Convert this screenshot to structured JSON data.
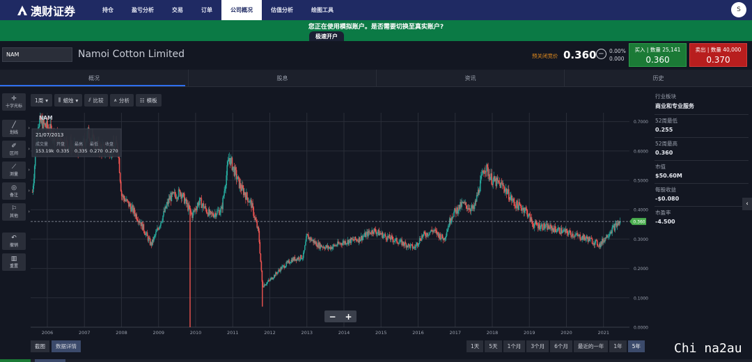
{
  "nav": {
    "brand": "澳财证券",
    "items": [
      "持仓",
      "盈亏分析",
      "交易",
      "订单",
      "公司概况",
      "估值分析",
      "绘图工具"
    ],
    "active_index": 4,
    "user_initial": "S"
  },
  "banner": {
    "message": "您正在使用模拟账户。是否需要切换至真实账户?",
    "open_button": "极速开户"
  },
  "quote": {
    "ticker": "NAM",
    "company": "Namoi Cotton Limited",
    "price_label": "预关闭竞价",
    "price": "0.360",
    "change_pct": "0.00%",
    "change_abs": "0.000",
    "buy": {
      "label": "买入 | 数量 25,141",
      "price": "0.360"
    },
    "sell": {
      "label": "卖出 | 数量 40,000",
      "price": "0.370"
    }
  },
  "tabs": [
    "概况",
    "股息",
    "资讯",
    "历史"
  ],
  "tools": [
    {
      "name": "十字光标",
      "icon": "crosshair-icon",
      "glyph": "✛",
      "arrow": false
    },
    {
      "name": "划线",
      "icon": "line-icon",
      "glyph": "╱",
      "arrow": true
    },
    {
      "name": "区间",
      "icon": "range-icon",
      "glyph": "⌗",
      "arrow": true
    },
    {
      "name": "测量",
      "icon": "ruler-icon",
      "glyph": "📏",
      "arrow": true
    },
    {
      "name": "备注",
      "icon": "note-icon",
      "glyph": "✎",
      "arrow": true
    },
    {
      "name": "其他",
      "icon": "flag-icon",
      "glyph": "⚑",
      "arrow": true
    },
    {
      "name": "撤销",
      "icon": "undo-icon",
      "glyph": "↶",
      "arrow": false
    },
    {
      "name": "重置",
      "icon": "trash-icon",
      "glyph": "🗑",
      "arrow": false
    }
  ],
  "toolbar": {
    "interval": "1周",
    "chart_type": "蜡烛",
    "compare": "比较",
    "analysis": "分析",
    "template": "模板"
  },
  "info_panel": [
    {
      "label": "行业板块",
      "value": "商业和专业服务"
    },
    {
      "label": "52周最低",
      "value": "0.255"
    },
    {
      "label": "52周最高",
      "value": "0.360"
    },
    {
      "label": "市值",
      "value": "$50.60M"
    },
    {
      "label": "每股收益",
      "value": "-$0.080"
    },
    {
      "label": "市盈率",
      "value": "-4.500"
    }
  ],
  "tooltip": {
    "symbol": "NAM",
    "date": "21/07/2013",
    "headers": [
      "成交量",
      "开盘",
      "最高",
      "最低",
      "收盘"
    ],
    "values": [
      "153.19k",
      "0.335",
      "0.335",
      "0.270",
      "0.270"
    ]
  },
  "bottom_left": [
    "截图",
    "数据详情"
  ],
  "ranges": [
    "1天",
    "5天",
    "1个月",
    "3个月",
    "6个月",
    "最近的一年",
    "1年",
    "5年"
  ],
  "range_active_index": 7,
  "watermark": "Chi na2au",
  "colors": {
    "up": "#26a69a",
    "down": "#ef5350",
    "last_price": "#4caf50"
  },
  "chart_data": {
    "type": "candlestick",
    "symbol": "NAM",
    "interval": "1周",
    "x_ticks": [
      "2006",
      "2007",
      "2008",
      "2009",
      "2010",
      "2011",
      "2012",
      "2013",
      "2014",
      "2015",
      "2016",
      "2017",
      "2018",
      "2019",
      "2020",
      "2021"
    ],
    "y_ticks": [
      "0.0000",
      "0.1000",
      "0.2000",
      "0.3000",
      "0.4000",
      "0.5000",
      "0.6000",
      "0.7000"
    ],
    "ylim": [
      0.0,
      0.73
    ],
    "xlim": [
      2005.55,
      2021.7
    ],
    "last_price": 0.36,
    "last_price_label": "0.360",
    "price_path": [
      [
        2005.6,
        0.46
      ],
      [
        2005.75,
        0.7
      ],
      [
        2006.0,
        0.68
      ],
      [
        2006.3,
        0.64
      ],
      [
        2006.6,
        0.62
      ],
      [
        2006.9,
        0.6
      ],
      [
        2007.1,
        0.66
      ],
      [
        2007.3,
        0.62
      ],
      [
        2007.6,
        0.6
      ],
      [
        2007.9,
        0.62
      ],
      [
        2008.0,
        0.45
      ],
      [
        2008.3,
        0.4
      ],
      [
        2008.5,
        0.36
      ],
      [
        2008.8,
        0.28
      ],
      [
        2009.0,
        0.34
      ],
      [
        2009.3,
        0.44
      ],
      [
        2009.6,
        0.46
      ],
      [
        2009.9,
        0.38
      ],
      [
        2010.1,
        0.43
      ],
      [
        2010.4,
        0.38
      ],
      [
        2010.7,
        0.4
      ],
      [
        2010.9,
        0.58
      ],
      [
        2011.2,
        0.48
      ],
      [
        2011.5,
        0.42
      ],
      [
        2011.7,
        0.32
      ],
      [
        2011.8,
        0.14
      ],
      [
        2012.0,
        0.16
      ],
      [
        2012.3,
        0.2
      ],
      [
        2012.6,
        0.23
      ],
      [
        2012.9,
        0.24
      ],
      [
        2013.0,
        0.31
      ],
      [
        2013.3,
        0.28
      ],
      [
        2013.6,
        0.27
      ],
      [
        2014.0,
        0.29
      ],
      [
        2014.4,
        0.3
      ],
      [
        2014.8,
        0.33
      ],
      [
        2015.1,
        0.31
      ],
      [
        2015.5,
        0.29
      ],
      [
        2015.9,
        0.27
      ],
      [
        2016.1,
        0.31
      ],
      [
        2016.4,
        0.33
      ],
      [
        2016.7,
        0.3
      ],
      [
        2016.9,
        0.38
      ],
      [
        2017.2,
        0.42
      ],
      [
        2017.5,
        0.4
      ],
      [
        2017.8,
        0.55
      ],
      [
        2018.0,
        0.5
      ],
      [
        2018.3,
        0.48
      ],
      [
        2018.6,
        0.42
      ],
      [
        2018.9,
        0.4
      ],
      [
        2019.1,
        0.35
      ],
      [
        2019.5,
        0.34
      ],
      [
        2019.8,
        0.33
      ],
      [
        2020.1,
        0.32
      ],
      [
        2020.3,
        0.31
      ],
      [
        2020.6,
        0.3
      ],
      [
        2020.9,
        0.28
      ],
      [
        2021.2,
        0.33
      ],
      [
        2021.45,
        0.36
      ]
    ],
    "spikes": [
      {
        "x": 2009.85,
        "low": 0.0
      },
      {
        "x": 2011.8,
        "low": 0.07
      }
    ]
  }
}
